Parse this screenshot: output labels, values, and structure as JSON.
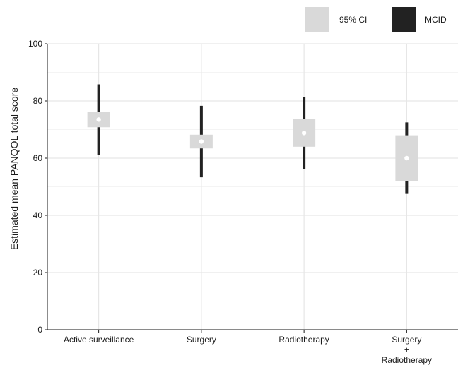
{
  "chart_data": {
    "type": "interval",
    "ylabel": "Estimated mean PANQOL total score",
    "xlabel": "",
    "ylim": [
      0,
      100
    ],
    "yticks": [
      0,
      20,
      40,
      60,
      80,
      100
    ],
    "grid": true,
    "legend_position": "top-right",
    "legend": [
      {
        "label": "95% CI",
        "color": "#d9d9d9",
        "icon": "ci-swatch"
      },
      {
        "label": "MCID",
        "color": "#222222",
        "icon": "mcid-swatch"
      }
    ],
    "categories": [
      {
        "lines": [
          "Active surveillance"
        ],
        "mean": 73.5,
        "ci": [
          70.8,
          76.2
        ],
        "mcid": [
          61.0,
          85.8
        ]
      },
      {
        "lines": [
          "Surgery"
        ],
        "mean": 65.8,
        "ci": [
          63.4,
          68.2
        ],
        "mcid": [
          53.3,
          78.3
        ]
      },
      {
        "lines": [
          "Radiotherapy"
        ],
        "mean": 68.8,
        "ci": [
          64.0,
          73.6
        ],
        "mcid": [
          56.3,
          81.3
        ]
      },
      {
        "lines": [
          "Surgery",
          "+",
          "Radiotherapy"
        ],
        "mean": 60.0,
        "ci": [
          52.0,
          68.0
        ],
        "mcid": [
          47.5,
          72.5
        ]
      }
    ]
  }
}
